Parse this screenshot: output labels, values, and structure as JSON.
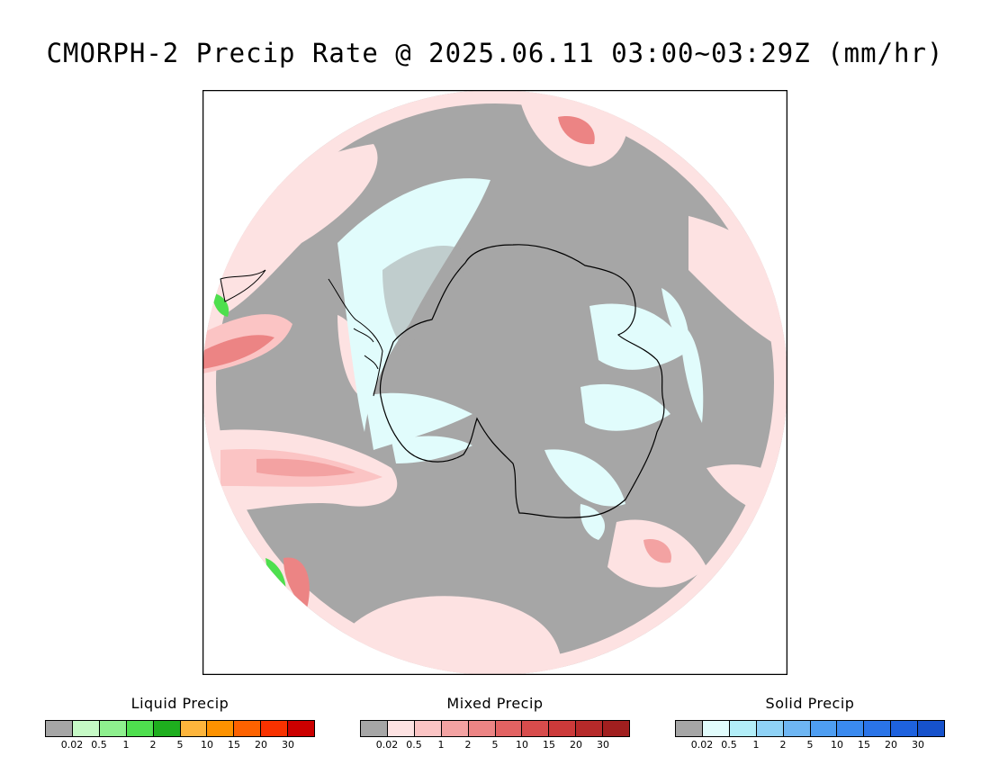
{
  "title": "CMORPH-2 Precip Rate @ 2025.06.11 03:00~03:29Z (mm/hr)",
  "colors": {
    "background_gray": "#a6a6a6",
    "coast": "#000000"
  },
  "legends": [
    {
      "title": "Liquid Precip",
      "colors": [
        "#a6a6a6",
        "#c6fac6",
        "#8ef08e",
        "#4edf4e",
        "#1eaf1e",
        "#fdb53c",
        "#fd9200",
        "#fd6200",
        "#f83200",
        "#cc0000"
      ],
      "ticks": [
        "0.02",
        "0.5",
        "1",
        "2",
        "5",
        "10",
        "15",
        "20",
        "30"
      ]
    },
    {
      "title": "Mixed Precip",
      "colors": [
        "#a6a6a6",
        "#fde2e2",
        "#fbc4c4",
        "#f3a2a2",
        "#ec8484",
        "#e26262",
        "#d84c4c",
        "#cc3a3a",
        "#b62a2a",
        "#a11f1f"
      ],
      "ticks": [
        "0.02",
        "0.5",
        "1",
        "2",
        "5",
        "10",
        "15",
        "20",
        "30"
      ]
    },
    {
      "title": "Solid Precip",
      "colors": [
        "#a6a6a6",
        "#e1fcfc",
        "#b2eef8",
        "#8fd2f6",
        "#6eb6f3",
        "#4e9ef2",
        "#3a8aef",
        "#2a74e8",
        "#1e62de",
        "#1652cc"
      ],
      "ticks": [
        "0.02",
        "0.5",
        "1",
        "2",
        "5",
        "10",
        "15",
        "20",
        "30"
      ]
    }
  ]
}
